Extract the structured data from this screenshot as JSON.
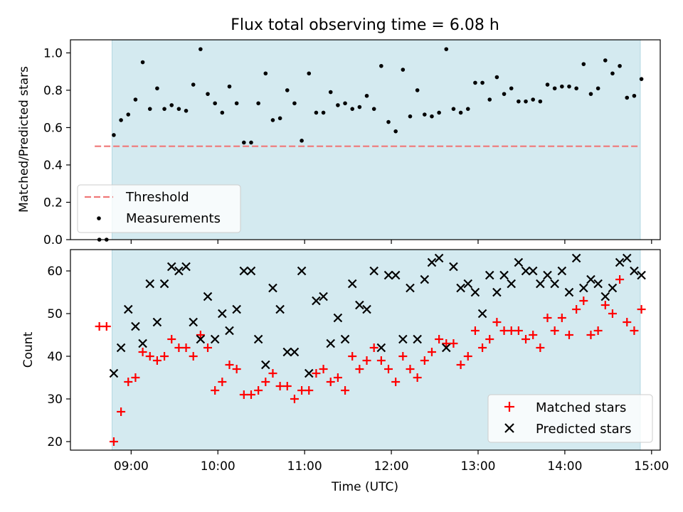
{
  "chart_data": [
    {
      "type": "scatter",
      "title": "Flux total observing time = 6.08 h",
      "ylabel": "Matched/Predicted stars",
      "xlim_hours": [
        8.3,
        15.1
      ],
      "ylim": [
        0,
        1.07
      ],
      "yticks": [
        0.0,
        0.2,
        0.4,
        0.6,
        0.8,
        1.0
      ],
      "ytick_labels": [
        "0.0",
        "0.2",
        "0.4",
        "0.6",
        "0.8",
        "1.0"
      ],
      "observing_window_hours": [
        8.78,
        14.87
      ],
      "window_color": "#d4eaf0",
      "threshold": {
        "name": "Threshold",
        "value": 0.5,
        "color": "#f07878",
        "style": "dashed",
        "x_range_hours": [
          8.58,
          14.87
        ]
      },
      "legend_placement": "lower left",
      "legend": [
        "Threshold",
        "Measurements"
      ],
      "series": [
        {
          "name": "Measurements",
          "color": "#000000",
          "marker": "dot",
          "x": [
            "08:38",
            "08:43",
            "08:48",
            "08:53",
            "08:58",
            "09:03",
            "09:08",
            "09:13",
            "09:18",
            "09:23",
            "09:28",
            "09:33",
            "09:38",
            "09:43",
            "09:48",
            "09:53",
            "09:58",
            "10:03",
            "10:08",
            "10:13",
            "10:18",
            "10:23",
            "10:28",
            "10:33",
            "10:38",
            "10:43",
            "10:48",
            "10:53",
            "10:58",
            "11:03",
            "11:08",
            "11:13",
            "11:18",
            "11:23",
            "11:28",
            "11:33",
            "11:38",
            "11:43",
            "11:48",
            "11:53",
            "11:58",
            "12:03",
            "12:08",
            "12:13",
            "12:18",
            "12:23",
            "12:28",
            "12:33",
            "12:38",
            "12:43",
            "12:48",
            "12:53",
            "12:58",
            "13:03",
            "13:08",
            "13:13",
            "13:18",
            "13:23",
            "13:28",
            "13:33",
            "13:38",
            "13:43",
            "13:48",
            "13:53",
            "13:58",
            "14:03",
            "14:08",
            "14:13",
            "14:18",
            "14:23",
            "14:28",
            "14:33",
            "14:38",
            "14:43",
            "14:48",
            "14:53"
          ],
          "y": [
            0.0,
            0.0,
            0.56,
            0.64,
            0.67,
            0.75,
            0.95,
            0.7,
            0.81,
            0.7,
            0.72,
            0.7,
            0.69,
            0.83,
            1.02,
            0.78,
            0.73,
            0.68,
            0.82,
            0.73,
            0.52,
            0.52,
            0.73,
            0.89,
            0.64,
            0.65,
            0.8,
            0.73,
            0.53,
            0.89,
            0.68,
            0.68,
            0.79,
            0.72,
            0.73,
            0.7,
            0.71,
            0.77,
            0.7,
            0.93,
            0.63,
            0.58,
            0.91,
            0.66,
            0.8,
            0.67,
            0.66,
            0.68,
            1.02,
            0.7,
            0.68,
            0.7,
            0.84,
            0.84,
            0.75,
            0.87,
            0.78,
            0.81,
            0.74,
            0.74,
            0.75,
            0.74,
            0.83,
            0.81,
            0.82,
            0.82,
            0.81,
            0.94,
            0.78,
            0.81,
            0.96,
            0.89,
            0.93,
            0.76,
            0.77,
            0.86
          ]
        }
      ]
    },
    {
      "type": "scatter",
      "xlabel": "Time (UTC)",
      "ylabel": "Count",
      "xlim_hours": [
        8.3,
        15.1
      ],
      "ylim": [
        18,
        65
      ],
      "yticks": [
        20,
        30,
        40,
        50,
        60
      ],
      "xticks": [
        "09:00",
        "10:00",
        "11:00",
        "12:00",
        "13:00",
        "14:00",
        "15:00"
      ],
      "observing_window_hours": [
        8.78,
        14.87
      ],
      "window_color": "#d4eaf0",
      "legend_placement": "lower right",
      "legend": [
        "Matched stars",
        "Predicted stars"
      ],
      "x": [
        "08:38",
        "08:43",
        "08:48",
        "08:53",
        "08:58",
        "09:03",
        "09:08",
        "09:13",
        "09:18",
        "09:23",
        "09:28",
        "09:33",
        "09:38",
        "09:43",
        "09:48",
        "09:53",
        "09:58",
        "10:03",
        "10:08",
        "10:13",
        "10:18",
        "10:23",
        "10:28",
        "10:33",
        "10:38",
        "10:43",
        "10:48",
        "10:53",
        "10:58",
        "11:03",
        "11:08",
        "11:13",
        "11:18",
        "11:23",
        "11:28",
        "11:33",
        "11:38",
        "11:43",
        "11:48",
        "11:53",
        "11:58",
        "12:03",
        "12:08",
        "12:13",
        "12:18",
        "12:23",
        "12:28",
        "12:33",
        "12:38",
        "12:43",
        "12:48",
        "12:53",
        "12:58",
        "13:03",
        "13:08",
        "13:13",
        "13:18",
        "13:23",
        "13:28",
        "13:33",
        "13:38",
        "13:43",
        "13:48",
        "13:53",
        "13:58",
        "14:03",
        "14:08",
        "14:13",
        "14:18",
        "14:23",
        "14:28",
        "14:33",
        "14:38",
        "14:43",
        "14:48",
        "14:53"
      ],
      "series": [
        {
          "name": "Matched stars",
          "color": "#ff0000",
          "marker": "plus",
          "values": [
            47,
            47,
            20,
            27,
            34,
            35,
            41,
            40,
            39,
            40,
            44,
            42,
            42,
            40,
            45,
            42,
            32,
            34,
            38,
            37,
            31,
            31,
            32,
            34,
            36,
            33,
            33,
            30,
            32,
            32,
            36,
            37,
            34,
            35,
            32,
            40,
            37,
            39,
            42,
            39,
            37,
            34,
            40,
            37,
            35,
            39,
            41,
            44,
            43,
            43,
            38,
            40,
            46,
            42,
            44,
            48,
            46,
            46,
            46,
            44,
            45,
            42,
            49,
            46,
            49,
            45,
            51,
            53,
            45,
            46,
            52,
            50,
            58,
            48,
            46,
            51
          ]
        },
        {
          "name": "Predicted stars",
          "color": "#000000",
          "marker": "x",
          "values": [
            null,
            null,
            36,
            42,
            51,
            47,
            43,
            57,
            48,
            57,
            61,
            60,
            61,
            48,
            44,
            54,
            44,
            50,
            46,
            51,
            60,
            60,
            44,
            38,
            56,
            51,
            41,
            41,
            60,
            36,
            53,
            54,
            43,
            49,
            44,
            57,
            52,
            51,
            60,
            42,
            59,
            59,
            44,
            56,
            44,
            58,
            62,
            63,
            42,
            61,
            56,
            57,
            55,
            50,
            59,
            55,
            59,
            57,
            62,
            60,
            60,
            57,
            59,
            57,
            60,
            55,
            63,
            56,
            58,
            57,
            54,
            56,
            62,
            63,
            60,
            59
          ]
        }
      ]
    }
  ]
}
